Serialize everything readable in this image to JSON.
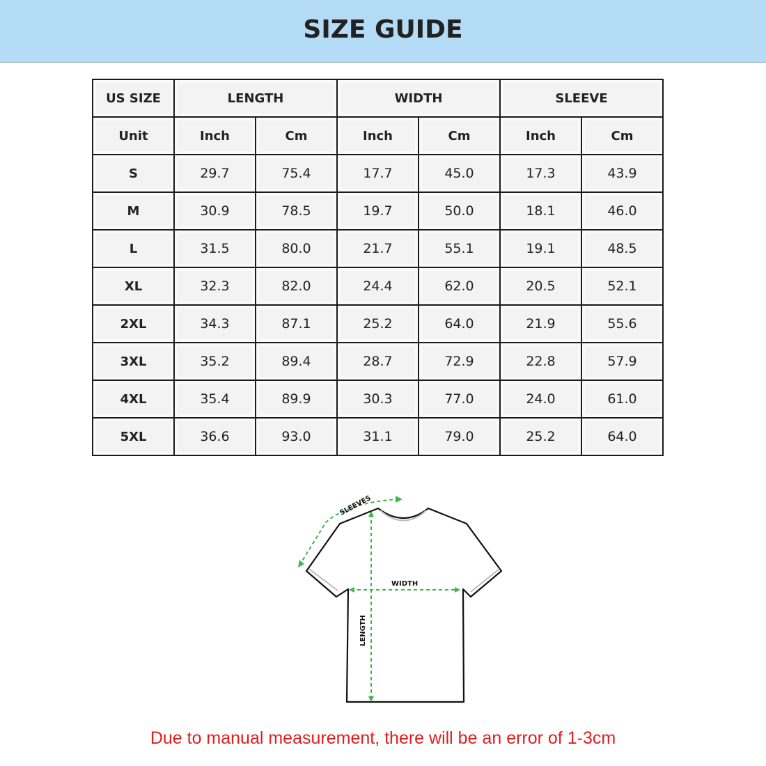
{
  "header": {
    "title": "SIZE GUIDE",
    "background": "#b5dcf7"
  },
  "table": {
    "groups": [
      "US SIZE",
      "LENGTH",
      "WIDTH",
      "SLEEVE"
    ],
    "units": [
      "Unit",
      "Inch",
      "Cm",
      "Inch",
      "Cm",
      "Inch",
      "Cm"
    ],
    "rows": [
      [
        "S",
        "29.7",
        "75.4",
        "17.7",
        "45.0",
        "17.3",
        "43.9"
      ],
      [
        "M",
        "30.9",
        "78.5",
        "19.7",
        "50.0",
        "18.1",
        "46.0"
      ],
      [
        "L",
        "31.5",
        "80.0",
        "21.7",
        "55.1",
        "19.1",
        "48.5"
      ],
      [
        "XL",
        "32.3",
        "82.0",
        "24.4",
        "62.0",
        "20.5",
        "52.1"
      ],
      [
        "2XL",
        "34.3",
        "87.1",
        "25.2",
        "64.0",
        "21.9",
        "55.6"
      ],
      [
        "3XL",
        "35.2",
        "89.4",
        "28.7",
        "72.9",
        "22.8",
        "57.9"
      ],
      [
        "4XL",
        "35.4",
        "89.9",
        "30.3",
        "77.0",
        "24.0",
        "61.0"
      ],
      [
        "5XL",
        "36.6",
        "93.0",
        "31.1",
        "79.0",
        "25.2",
        "64.0"
      ]
    ]
  },
  "diagram": {
    "sleeves_label": "SLEEVES",
    "width_label": "WIDTH",
    "length_label": "LENGTH",
    "arrow_color": "#3cb54a"
  },
  "note": {
    "text": "Due to manual measurement, there will be an error of 1-3cm",
    "color": "#e01e1e"
  }
}
